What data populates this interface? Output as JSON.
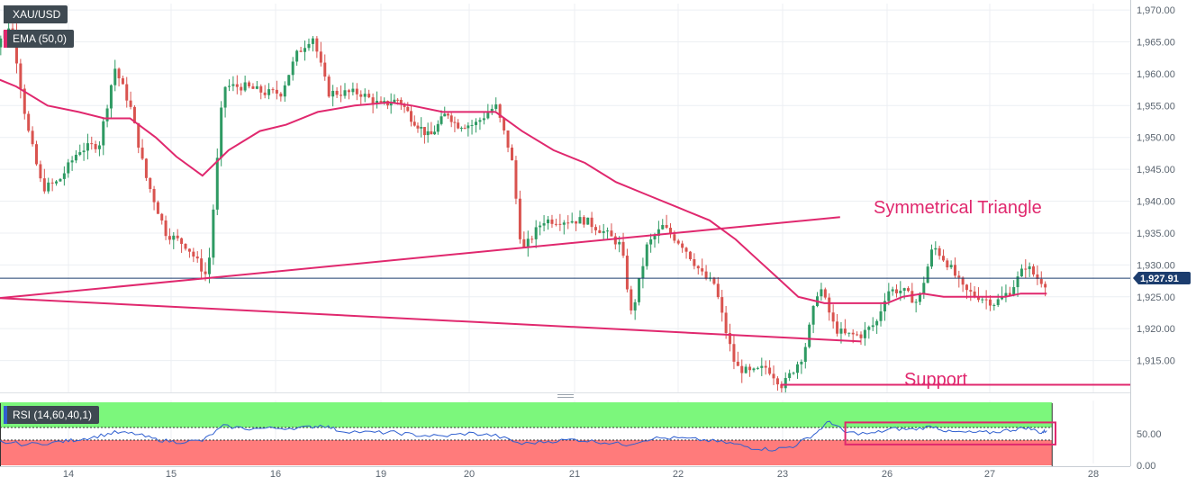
{
  "legend": {
    "symbol": "XAU/USD",
    "ema_label": "EMA (50,0)",
    "rsi_label": "RSI (14,60,40,1)"
  },
  "annotations": {
    "triangle_label": "Symmetrical Triangle",
    "support_label": "Support"
  },
  "colors": {
    "up": "#2e9a63",
    "down": "#d9534f",
    "ema": "#e0286e",
    "annotation": "#e0286e",
    "price_line": "#1c3d6e",
    "rsi_line": "#2f5fd0",
    "rsi_overbought_zone": "#7cf77c",
    "rsi_oversold_zone": "#ff7b7b"
  },
  "chart_data": [
    {
      "type": "candlestick",
      "title": "XAU/USD",
      "x_ticks": [
        "14",
        "15",
        "16",
        "19",
        "20",
        "21",
        "22",
        "23",
        "26",
        "27",
        "28"
      ],
      "y_ticks": [
        "1,970.00",
        "1,965.00",
        "1,960.00",
        "1,955.00",
        "1,950.00",
        "1,945.00",
        "1,940.00",
        "1,935.00",
        "1,930.00",
        "1,925.00",
        "1,920.00",
        "1,915.00"
      ],
      "ylim": [
        1910,
        1971
      ],
      "last_price": 1927.91,
      "last_price_label": "1,927.91",
      "support_level": 1911.2,
      "close_path": [
        [
          13.2,
          1962
        ],
        [
          13.45,
          1968
        ],
        [
          13.6,
          1952
        ],
        [
          13.75,
          1942
        ],
        [
          13.9,
          1943
        ],
        [
          14.1,
          1948
        ],
        [
          14.3,
          1949
        ],
        [
          14.45,
          1961
        ],
        [
          14.6,
          1955
        ],
        [
          14.75,
          1944
        ],
        [
          14.95,
          1935
        ],
        [
          15.15,
          1933
        ],
        [
          15.35,
          1928
        ],
        [
          15.5,
          1958
        ],
        [
          15.7,
          1958
        ],
        [
          15.9,
          1957
        ],
        [
          16.05,
          1957
        ],
        [
          16.2,
          1963
        ],
        [
          16.35,
          1966
        ],
        [
          16.5,
          1957
        ],
        [
          16.8,
          1957
        ],
        [
          17.0,
          1955
        ],
        [
          17.2,
          1956
        ],
        [
          17.35,
          1953
        ],
        [
          17.55,
          1950
        ],
        [
          17.75,
          1954
        ],
        [
          17.85,
          1952
        ],
        [
          18.05,
          1952
        ],
        [
          18.25,
          1955
        ],
        [
          18.4,
          1947
        ],
        [
          18.5,
          1932
        ],
        [
          18.7,
          1937
        ],
        [
          18.9,
          1937
        ],
        [
          19.1,
          1937
        ],
        [
          19.3,
          1935
        ],
        [
          19.45,
          1933
        ],
        [
          19.55,
          1922
        ],
        [
          19.7,
          1933
        ],
        [
          19.85,
          1936
        ],
        [
          20.05,
          1933
        ],
        [
          20.25,
          1928
        ],
        [
          20.35,
          1927
        ],
        [
          20.45,
          1920
        ],
        [
          20.55,
          1914
        ],
        [
          20.7,
          1913
        ],
        [
          20.85,
          1914
        ],
        [
          21.0,
          1911
        ],
        [
          21.2,
          1916
        ],
        [
          21.35,
          1927
        ],
        [
          21.5,
          1920
        ],
        [
          21.6,
          1919
        ],
        [
          21.75,
          1919
        ],
        [
          21.9,
          1921
        ],
        [
          22.0,
          1926
        ],
        [
          22.15,
          1926
        ],
        [
          22.3,
          1924
        ],
        [
          22.45,
          1933
        ],
        [
          22.6,
          1930
        ],
        [
          22.75,
          1926
        ],
        [
          22.9,
          1925
        ],
        [
          23.05,
          1924
        ],
        [
          23.2,
          1926
        ],
        [
          23.35,
          1930
        ],
        [
          23.45,
          1928
        ],
        [
          23.55,
          1927
        ]
      ],
      "ema_path": [
        [
          13.2,
          1960
        ],
        [
          13.5,
          1958
        ],
        [
          13.8,
          1955
        ],
        [
          14.1,
          1954
        ],
        [
          14.35,
          1953
        ],
        [
          14.6,
          1953
        ],
        [
          14.85,
          1950
        ],
        [
          15.05,
          1947
        ],
        [
          15.3,
          1944
        ],
        [
          15.55,
          1948
        ],
        [
          15.85,
          1951
        ],
        [
          16.1,
          1952
        ],
        [
          16.4,
          1954
        ],
        [
          16.75,
          1955
        ],
        [
          17.1,
          1955.5
        ],
        [
          17.35,
          1955
        ],
        [
          17.7,
          1954
        ],
        [
          18.0,
          1954
        ],
        [
          18.25,
          1954
        ],
        [
          18.5,
          1951
        ],
        [
          18.8,
          1948
        ],
        [
          19.1,
          1946
        ],
        [
          19.4,
          1943
        ],
        [
          19.7,
          1941
        ],
        [
          20.0,
          1939
        ],
        [
          20.3,
          1937
        ],
        [
          20.55,
          1934
        ],
        [
          20.75,
          1931
        ],
        [
          20.95,
          1928
        ],
        [
          21.15,
          1925
        ],
        [
          21.4,
          1924
        ],
        [
          21.6,
          1924
        ],
        [
          21.8,
          1924
        ],
        [
          22.0,
          1924
        ],
        [
          22.15,
          1925
        ],
        [
          22.35,
          1925.5
        ],
        [
          22.55,
          1925
        ],
        [
          22.75,
          1925
        ],
        [
          22.95,
          1925
        ],
        [
          23.15,
          1925
        ],
        [
          23.3,
          1925.5
        ],
        [
          23.45,
          1925.5
        ],
        [
          23.55,
          1925.5
        ]
      ],
      "triangle_upper": [
        [
          21.55,
          1937.5
        ],
        [
          24.42,
          1924.8
        ]
      ],
      "triangle_lower": [
        [
          21.75,
          1918
        ],
        [
          24.42,
          1924.8
        ]
      ]
    },
    {
      "type": "line",
      "title": "RSI (14,60,40,1)",
      "y_ticks": [
        "50.00",
        "0.00"
      ],
      "ylim": [
        0,
        100
      ],
      "overbought": 60,
      "oversold": 40,
      "highlight_box_range": [
        33,
        68
      ],
      "values": [
        [
          13.05,
          41
        ],
        [
          13.3,
          38
        ],
        [
          13.6,
          33
        ],
        [
          13.9,
          37
        ],
        [
          14.05,
          40
        ],
        [
          14.25,
          45
        ],
        [
          14.45,
          52
        ],
        [
          14.65,
          50
        ],
        [
          14.85,
          41
        ],
        [
          15.05,
          37
        ],
        [
          15.3,
          39
        ],
        [
          15.5,
          62
        ],
        [
          15.75,
          58
        ],
        [
          16.05,
          59
        ],
        [
          16.3,
          60
        ],
        [
          16.45,
          64
        ],
        [
          16.6,
          55
        ],
        [
          16.9,
          52
        ],
        [
          17.15,
          52
        ],
        [
          17.4,
          48
        ],
        [
          17.7,
          46
        ],
        [
          18.0,
          51
        ],
        [
          18.25,
          47
        ],
        [
          18.5,
          34
        ],
        [
          18.75,
          38
        ],
        [
          19.0,
          41
        ],
        [
          19.25,
          37
        ],
        [
          19.5,
          33
        ],
        [
          19.75,
          43
        ],
        [
          20.0,
          43
        ],
        [
          20.25,
          40
        ],
        [
          20.5,
          35
        ],
        [
          20.7,
          28
        ],
        [
          20.9,
          25
        ],
        [
          21.1,
          30
        ],
        [
          21.3,
          49
        ],
        [
          21.45,
          70
        ],
        [
          21.6,
          52
        ],
        [
          21.85,
          50
        ],
        [
          22.05,
          58
        ],
        [
          22.25,
          57
        ],
        [
          22.45,
          62
        ],
        [
          22.6,
          53
        ],
        [
          22.8,
          52
        ],
        [
          23.0,
          52
        ],
        [
          23.2,
          56
        ],
        [
          23.35,
          60
        ],
        [
          23.5,
          52
        ],
        [
          23.55,
          55
        ]
      ]
    }
  ]
}
